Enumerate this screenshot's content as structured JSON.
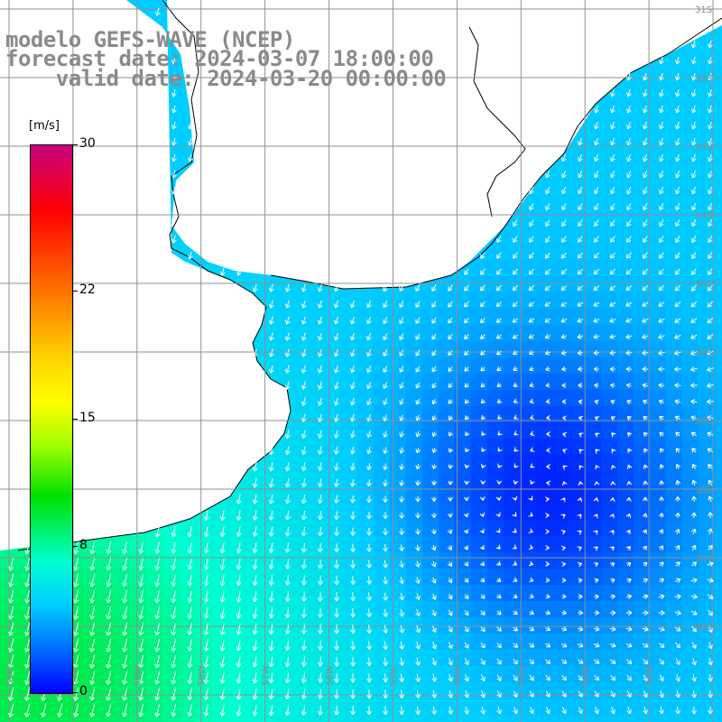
{
  "title": {
    "line1": "modelo GEFS-WAVE (NCEP)",
    "line2": "forecast date: 2024-03-07 18:00:00",
    "line3": "    valid date: 2024-03-20 00:00:00"
  },
  "colorbar": {
    "unit": "[m/s]",
    "ticks": [
      "30",
      "22",
      "15",
      "8",
      "0"
    ],
    "tick_values": [
      30,
      22,
      15,
      8,
      0
    ],
    "range": [
      0,
      30
    ],
    "colors": [
      "#0000ff",
      "#0060ff",
      "#00ccff",
      "#00ffd0",
      "#00e000",
      "#9cff00",
      "#ffff00",
      "#ffd400",
      "#ff6600",
      "#ff0000",
      "#c80080"
    ]
  },
  "map": {
    "lon_range": [
      -61,
      -50
    ],
    "lat_range": [
      -41,
      -31
    ],
    "lon_labels": [
      "61W",
      "60W",
      "59W",
      "58W",
      "57W",
      "56W",
      "55W",
      "54W",
      "53W",
      "52W",
      "51W"
    ],
    "lat_labels": [
      "31S",
      "32S",
      "33S",
      "34S",
      "35S",
      "36S",
      "37S",
      "38S",
      "39S",
      "40S"
    ],
    "land_color": "#ffffff",
    "grid_color": "#909090",
    "arrow_color": "#ffffff",
    "wind_field": {
      "low_center": {
        "lon": -52.6,
        "lat": -38.0,
        "speed_ms": 1
      },
      "ambient_speed_ms": 6,
      "southwest_jet": {
        "lon": -60.5,
        "lat": -40.8,
        "speed_ms": 11
      },
      "prevailing_direction": "southward in west, cyclonic around low in east"
    }
  }
}
